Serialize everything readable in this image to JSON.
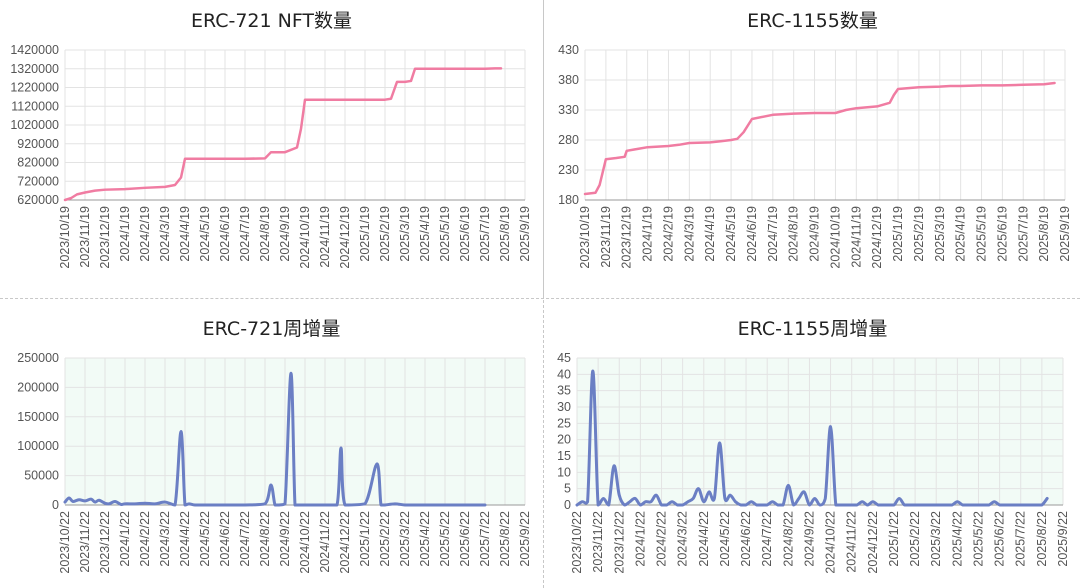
{
  "chart_data": [
    {
      "type": "line",
      "title": "ERC-721 NFT数量",
      "line_color": "#f07ca2",
      "x_tick_labels": [
        "2023/10/19",
        "2023/11/19",
        "2023/12/19",
        "2024/1/19",
        "2024/2/19",
        "2024/3/19",
        "2024/4/19",
        "2024/5/19",
        "2024/6/19",
        "2024/7/19",
        "2024/8/19",
        "2024/9/19",
        "2024/10/19",
        "2024/11/19",
        "2024/12/19",
        "2025/1/19",
        "2025/2/19",
        "2025/3/19",
        "2025/4/19",
        "2025/5/19",
        "2025/6/19",
        "2025/7/19",
        "2025/8/19",
        "2025/9/19"
      ],
      "y_ticks": [
        620000,
        720000,
        820000,
        920000,
        1020000,
        1120000,
        1220000,
        1320000,
        1420000
      ],
      "ylim": [
        620000,
        1420000
      ],
      "x": [
        0,
        0.3,
        0.6,
        1.0,
        1.5,
        2.0,
        3.0,
        4.0,
        5.0,
        5.5,
        5.8,
        6.0,
        7.0,
        8.0,
        9.0,
        10.0,
        10.3,
        11.0,
        11.6,
        11.8,
        12.0,
        13.0,
        14.0,
        15.0,
        16.0,
        16.3,
        16.6,
        17.0,
        17.3,
        17.5,
        18.0,
        19.0,
        20.0,
        21.0,
        21.5,
        21.8
      ],
      "values": [
        620000,
        630000,
        650000,
        660000,
        670000,
        675000,
        678000,
        685000,
        690000,
        700000,
        740000,
        840000,
        840000,
        840000,
        840000,
        842000,
        875000,
        875000,
        900000,
        1000000,
        1155000,
        1155000,
        1155000,
        1155000,
        1155000,
        1160000,
        1250000,
        1250000,
        1255000,
        1320000,
        1320000,
        1320000,
        1320000,
        1320000,
        1322000,
        1322000
      ]
    },
    {
      "type": "line",
      "title": "ERC-1155数量",
      "line_color": "#f07ca2",
      "x_tick_labels": [
        "2023/10/19",
        "2023/11/19",
        "2023/12/19",
        "2024/1/19",
        "2024/2/19",
        "2024/3/19",
        "2024/4/19",
        "2024/5/19",
        "2024/6/19",
        "2024/7/19",
        "2024/8/19",
        "2024/9/19",
        "2024/10/19",
        "2024/11/19",
        "2024/12/19",
        "2025/1/19",
        "2025/2/19",
        "2025/3/19",
        "2025/4/19",
        "2025/5/19",
        "2025/6/19",
        "2025/7/19",
        "2025/8/19",
        "2025/9/19"
      ],
      "y_ticks": [
        180,
        230,
        280,
        330,
        380,
        430
      ],
      "ylim": [
        180,
        430
      ],
      "x": [
        0,
        0.5,
        0.7,
        1.0,
        1.5,
        1.9,
        2.0,
        2.5,
        3.0,
        4.0,
        4.5,
        5.0,
        6.0,
        6.5,
        7.0,
        7.3,
        7.6,
        8.0,
        9.0,
        10.0,
        11.0,
        12.0,
        12.5,
        13.0,
        14.0,
        14.6,
        14.8,
        15.0,
        16.0,
        17.0,
        17.5,
        18.0,
        19.0,
        20.0,
        21.0,
        22.0,
        22.5
      ],
      "values": [
        190,
        192,
        205,
        248,
        250,
        252,
        262,
        265,
        268,
        270,
        272,
        275,
        276,
        278,
        280,
        282,
        293,
        315,
        322,
        324,
        325,
        325,
        330,
        333,
        336,
        342,
        355,
        365,
        368,
        369,
        370,
        370,
        371,
        371,
        372,
        373,
        375
      ]
    },
    {
      "type": "area",
      "title": "ERC-721周增量",
      "line_color": "#6b7fc4",
      "plot_bg": "#f2fbf6",
      "x_tick_labels": [
        "2023/10/22",
        "2023/11/22",
        "2023/12/22",
        "2024/1/22",
        "2024/2/22",
        "2024/3/22",
        "2024/4/22",
        "2024/5/22",
        "2024/6/22",
        "2024/7/22",
        "2024/8/22",
        "2024/9/22",
        "2024/10/22",
        "2024/11/22",
        "2024/12/22",
        "2025/1/22",
        "2025/2/22",
        "2025/3/22",
        "2025/4/22",
        "2025/5/22",
        "2025/6/22",
        "2025/7/22",
        "2025/8/22",
        "2025/9/22"
      ],
      "y_ticks": [
        0,
        50000,
        100000,
        150000,
        200000,
        250000
      ],
      "ylim": [
        0,
        250000
      ],
      "x": [
        0,
        0.2,
        0.4,
        0.7,
        1.0,
        1.3,
        1.5,
        1.7,
        2.0,
        2.2,
        2.5,
        2.8,
        3.0,
        3.5,
        4.0,
        4.5,
        5.0,
        5.5,
        5.8,
        6.0,
        6.2,
        6.5,
        7.0,
        8.0,
        9.0,
        10.0,
        10.3,
        10.5,
        10.7,
        11.0,
        11.3,
        11.5,
        11.7,
        12.0,
        13.0,
        13.6,
        13.8,
        14.0,
        15.0,
        15.6,
        15.8,
        16.0,
        16.5,
        17.0,
        17.5,
        18.0,
        19.0,
        20.0,
        20.5,
        21.0
      ],
      "values": [
        5000,
        12000,
        6000,
        9000,
        7000,
        10000,
        5000,
        8000,
        3000,
        2000,
        6000,
        1000,
        2000,
        2000,
        3000,
        2000,
        5000,
        0,
        125000,
        0,
        2000,
        0,
        0,
        0,
        0,
        2000,
        34000,
        0,
        0,
        2000,
        224000,
        0,
        0,
        0,
        0,
        0,
        97000,
        0,
        2000,
        70000,
        0,
        0,
        2000,
        0,
        0,
        0,
        0,
        0,
        0,
        0
      ]
    },
    {
      "type": "area",
      "title": "ERC-1155周增量",
      "line_color": "#6b7fc4",
      "plot_bg": "#f2fbf6",
      "x_tick_labels": [
        "2023/10/22",
        "2023/11/22",
        "2023/12/22",
        "2024/1/22",
        "2024/2/22",
        "2024/3/22",
        "2024/4/22",
        "2024/5/22",
        "2024/6/22",
        "2024/7/22",
        "2024/8/22",
        "2024/9/22",
        "2024/10/22",
        "2024/11/22",
        "2024/12/22",
        "2025/1/22",
        "2025/2/22",
        "2025/3/22",
        "2025/4/22",
        "2025/5/22",
        "2025/6/22",
        "2025/7/22",
        "2025/8/22",
        "2025/9/22"
      ],
      "y_ticks": [
        0,
        5,
        10,
        15,
        20,
        25,
        30,
        35,
        40,
        45
      ],
      "ylim": [
        0,
        45
      ],
      "x": [
        0,
        0.25,
        0.5,
        0.75,
        1.0,
        1.25,
        1.5,
        1.75,
        2.0,
        2.25,
        2.5,
        2.75,
        3.0,
        3.25,
        3.5,
        3.75,
        4.0,
        4.25,
        4.5,
        4.75,
        5.0,
        5.25,
        5.5,
        5.75,
        6.0,
        6.25,
        6.5,
        6.75,
        7.0,
        7.25,
        7.5,
        7.75,
        8.0,
        8.25,
        8.5,
        8.75,
        9.0,
        9.25,
        9.5,
        9.75,
        10.0,
        10.25,
        10.5,
        10.75,
        11.0,
        11.25,
        11.5,
        11.75,
        12.0,
        12.25,
        12.5,
        12.75,
        13.0,
        13.25,
        13.5,
        13.75,
        14.0,
        14.25,
        14.5,
        14.75,
        15.0,
        15.25,
        15.5,
        15.75,
        16.0,
        16.25,
        16.5,
        16.75,
        17.0,
        17.25,
        17.5,
        17.75,
        18.0,
        18.25,
        18.5,
        18.75,
        19.0,
        19.25,
        19.5,
        19.75,
        20.0,
        20.25,
        20.5,
        20.75,
        21.0,
        21.25,
        21.5,
        21.75,
        22.0,
        22.25
      ],
      "values": [
        0,
        1,
        1,
        41,
        0,
        2,
        0,
        12,
        3,
        0,
        1,
        2,
        0,
        1,
        1,
        3,
        0,
        0,
        1,
        0,
        0,
        1,
        2,
        5,
        1,
        4,
        2,
        19,
        2,
        3,
        1,
        0,
        0,
        1,
        0,
        0,
        0,
        1,
        0,
        0,
        6,
        0,
        2,
        4,
        0,
        2,
        0,
        2,
        24,
        0,
        0,
        0,
        0,
        0,
        1,
        0,
        1,
        0,
        0,
        0,
        0,
        2,
        0,
        0,
        0,
        0,
        0,
        0,
        0,
        0,
        0,
        0,
        1,
        0,
        0,
        0,
        0,
        0,
        0,
        1,
        0,
        0,
        0,
        0,
        0,
        0,
        0,
        0,
        0,
        2
      ]
    }
  ]
}
